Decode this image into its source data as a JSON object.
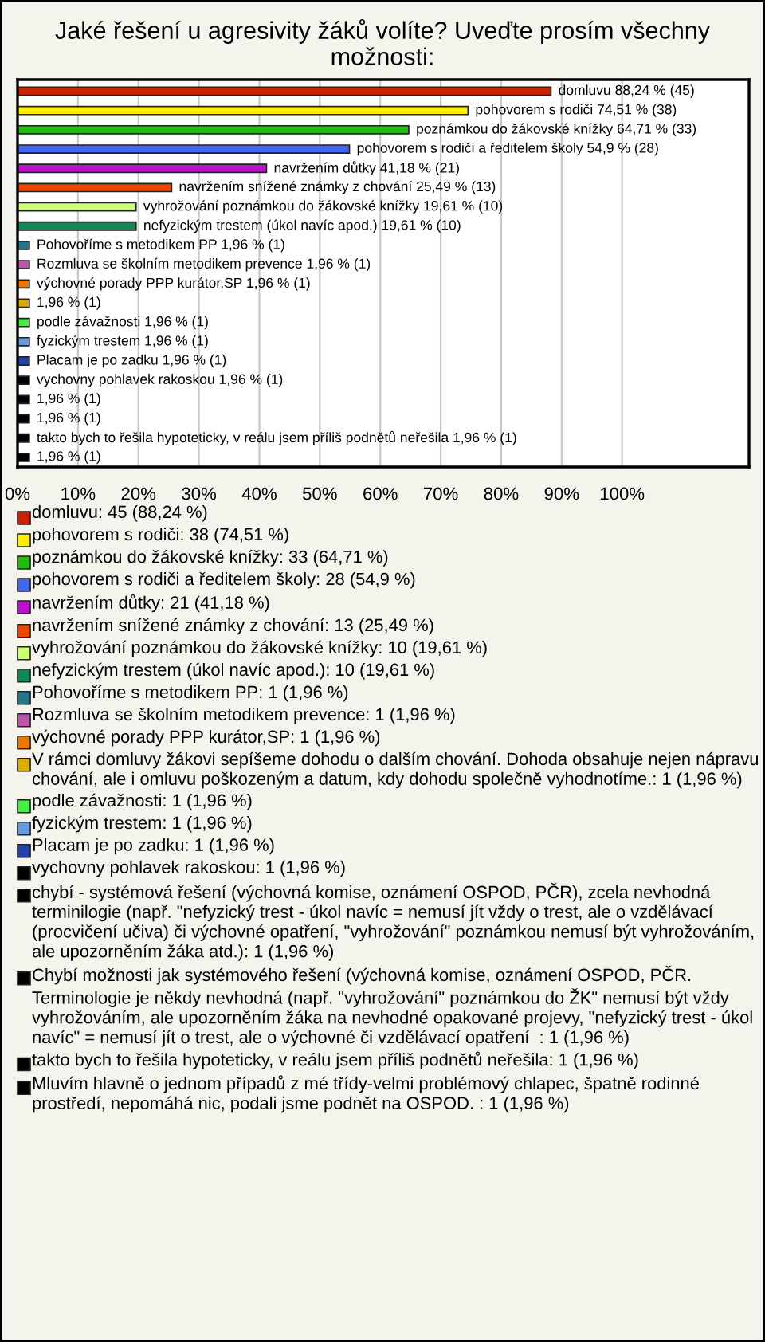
{
  "chart_data": {
    "type": "bar",
    "orientation": "horizontal",
    "title": "Jaké řešení u agresivity žáků volíte? Uveďte prosím všechny možnosti:",
    "categories": [
      null,
      null,
      null,
      null,
      null,
      null,
      null,
      null,
      null,
      null,
      null,
      null,
      null,
      null,
      null,
      null,
      null,
      null,
      null,
      null
    ],
    "values": [
      88.24,
      74.51,
      64.71,
      54.9,
      41.18,
      25.49,
      19.61,
      19.61,
      1.96,
      1.96,
      1.96,
      1.96,
      1.96,
      1.96,
      1.96,
      1.96,
      1.96,
      1.96,
      1.96,
      1.96
    ],
    "colors": [
      "#cc2200",
      "#ffee00",
      "#22bb11",
      "#4466ee",
      "#bb11cc",
      "#ee4400",
      "#ccff77",
      "#118855",
      "#227788",
      "#bb55aa",
      "#ee7700",
      "#ddaa00",
      "#44ee44",
      "#6699dd",
      "#2244aa",
      "#000000",
      "#000000",
      "#000000",
      "#000000",
      "#000000"
    ],
    "value_labels": [
      "domluvu 88,24 % (45)",
      "pohovorem s rodiči 74,51 % (38)",
      "poznámkou do žákovské knížky 64,71 % (33)",
      "pohovorem s rodiči a ředitelem školy 54,9 % (28)",
      "navržením důtky 41,18 % (21)",
      "navržením snížené známky z chování 25,49 % (13)",
      "vyhrožování poznámkou do žákovské knížky 19,61 % (10)",
      "nefyzickým trestem (úkol navíc apod.) 19,61 % (10)",
      "Pohovoříme s metodikem PP 1,96 % (1)",
      "Rozmluva se školním metodikem prevence 1,96 % (1)",
      "výchovné porady PPP kurátor,SP 1,96 % (1)",
      "1,96 % (1)",
      "podle závažnosti 1,96 % (1)",
      "fyzickým trestem 1,96 % (1)",
      "Placam je po zadku 1,96 % (1)",
      "vychovny pohlavek rakoskou 1,96 % (1)",
      "1,96 % (1)",
      "1,96 % (1)",
      "takto bych to řešila hypoteticky, v reálu jsem příliš podnětů neřešila 1,96 % (1)",
      "1,96 % (1)"
    ],
    "xlim": [
      0,
      121
    ],
    "xticks": [
      {
        "value": 0,
        "label": "0%"
      },
      {
        "value": 10,
        "label": "10%"
      },
      {
        "value": 20,
        "label": "20%"
      },
      {
        "value": 30,
        "label": "30%"
      },
      {
        "value": 40,
        "label": "40%"
      },
      {
        "value": 50,
        "label": "50%"
      },
      {
        "value": 60,
        "label": "60%"
      },
      {
        "value": 70,
        "label": "70%"
      },
      {
        "value": 80,
        "label": "80%"
      },
      {
        "value": 90,
        "label": "90%"
      },
      {
        "value": 100,
        "label": "100%"
      }
    ],
    "grid": "x",
    "annotations": [
      "domluvu: 45 (88,24 %)",
      "pohovorem s rodiči: 38 (74,51 %)",
      "poznámkou do žákovské knížky: 33 (64,71 %)",
      "pohovorem s rodiči a ředitelem školy: 28 (54,9 %)",
      "navržením důtky: 21 (41,18 %)",
      "navržením snížené známky z chování: 13 (25,49 %)",
      "vyhrožování poznámkou do žákovské knížky: 10 (19,61 %)",
      "nefyzickým trestem (úkol navíc apod.): 10 (19,61 %)",
      "Pohovoříme s metodikem PP: 1 (1,96 %)",
      "Rozmluva se školním metodikem prevence: 1 (1,96 %)",
      "výchovné porady PPP kurátor,SP: 1 (1,96 %)",
      "V rámci domluvy žákovi sepíšeme dohodu o dalším chování. Dohoda obsahuje nejen nápravu chování, ale i omluvu poškozeným a datum, kdy dohodu společně vyhodnotíme.: 1 (1,96 %)",
      "podle závažnosti: 1 (1,96 %)",
      "fyzickým trestem: 1 (1,96 %)",
      "Placam je po zadku: 1 (1,96 %)",
      "vychovny pohlavek rakoskou: 1 (1,96 %)",
      "chybí - systémová řešení (výchovná komise, oznámení OSPOD, PČR), zcela nevhodná terminilogie (např. \"nefyzický trest - úkol navíc = nemusí jít vždy o trest, ale o vzdělávací (procvičení učiva) či výchovné opatření, \"vyhrožování\" poznámkou nemusí být vyhrožováním, ale upozorněním žáka atd.): 1 (1,96 %)",
      "Chybí možnosti jak systémového řešení (výchovná komise, oznámení OSPOD, PČR. Terminologie je někdy nevhodná (např. \"vyhrožování\" poznámkou do ŽK\" nemusí být vždy vyhrožováním, ale upozorněním žáka na nevhodné opakované projevy, \"nefyzický trest - úkol navíc\" = nemusí jít o trest, ale o výchovné či vzdělávací opatření  : 1 (1,96 %)",
      "takto bych to řešila hypoteticky, v reálu jsem příliš podnětů neřešila: 1 (1,96 %)",
      "Mluvím hlavně o jednom případů z mé třídy-velmi problémový chlapec, špatně rodinné prostředí, nepomáhá nic, podali jsme podnět na OSPOD. : 1 (1,96 %)"
    ]
  }
}
